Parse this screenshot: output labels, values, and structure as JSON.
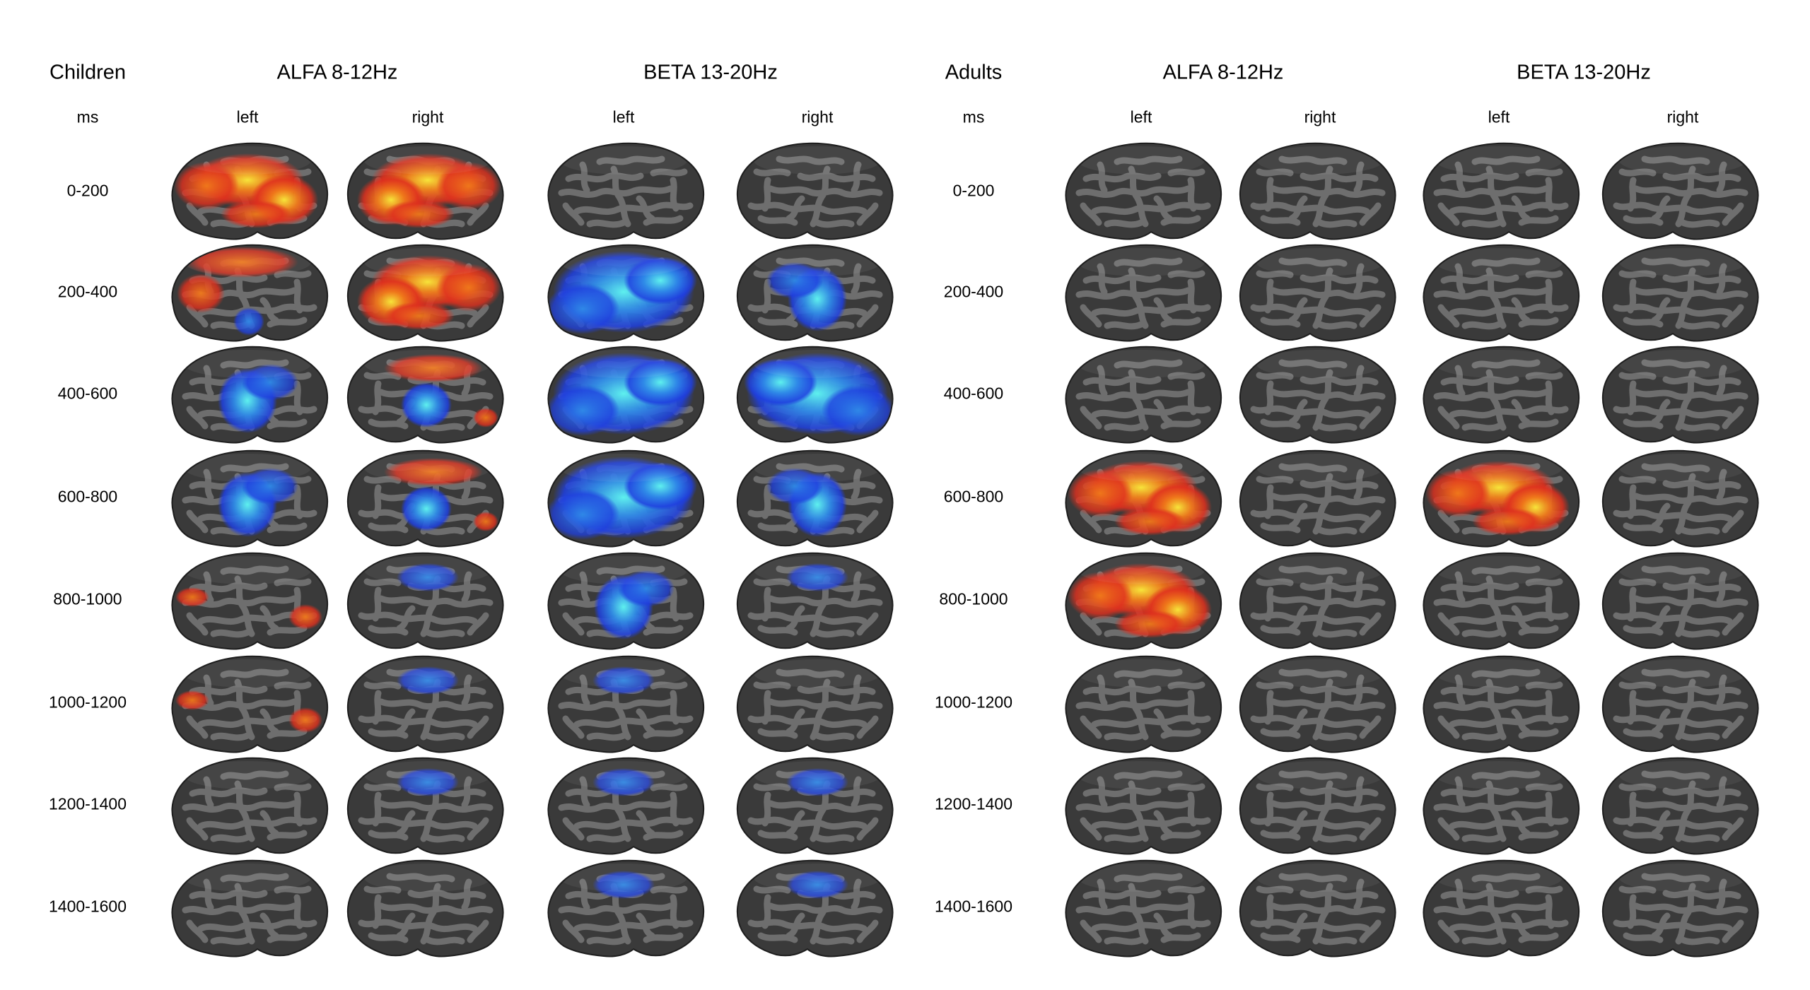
{
  "children": {
    "title": "Children",
    "ms_label": "ms",
    "alfa": {
      "title": "ALFA 8-12Hz",
      "left": "left",
      "right": "right"
    },
    "beta": {
      "title": "BETA 13-20Hz",
      "left": "left",
      "right": "right"
    }
  },
  "adults": {
    "title": "Adults",
    "ms_label": "ms",
    "alfa": {
      "title": "ALFA 8-12Hz",
      "left": "left",
      "right": "right"
    },
    "beta": {
      "title": "BETA 13-20Hz",
      "left": "left",
      "right": "right"
    }
  },
  "time_windows": [
    "0-200",
    "200-400",
    "400-600",
    "600-800",
    "800-1000",
    "1000-1200",
    "1200-1400",
    "1400-1600"
  ],
  "colors": {
    "cortex_dark": "#3a3a3a",
    "cortex_light": "#6e6e6e",
    "increase_red": "#e0301e",
    "increase_orange": "#f07a1a",
    "increase_yellow": "#f7e43a",
    "decrease_blue": "#1f3fe0",
    "decrease_mid": "#2f8ae8",
    "decrease_cyan": "#5ef0ee"
  },
  "activation_maps": {
    "children_alfa_left": [
      "increase-strong",
      "increase-mixed",
      "decrease-moderate",
      "decrease-moderate",
      "increase-weak",
      "increase-weak",
      "none",
      "none"
    ],
    "children_alfa_right": [
      "increase-strong",
      "increase-strong",
      "mixed",
      "mixed",
      "decrease-weak",
      "decrease-weak",
      "decrease-weak",
      "none"
    ],
    "children_beta_left": [
      "none",
      "decrease-strong",
      "decrease-strong",
      "decrease-strong",
      "decrease-moderate",
      "decrease-weak",
      "decrease-weak",
      "decrease-weak"
    ],
    "children_beta_right": [
      "none",
      "decrease-moderate",
      "decrease-strong",
      "decrease-moderate",
      "decrease-weak",
      "none",
      "decrease-weak",
      "decrease-weak"
    ],
    "adults_alfa_left": [
      "none",
      "none",
      "none",
      "increase-strong",
      "increase-strong",
      "none",
      "none",
      "none"
    ],
    "adults_alfa_right": [
      "none",
      "none",
      "none",
      "none",
      "none",
      "none",
      "none",
      "none"
    ],
    "adults_beta_left": [
      "none",
      "none",
      "none",
      "increase-strong",
      "none",
      "none",
      "none",
      "none"
    ],
    "adults_beta_right": [
      "none",
      "none",
      "none",
      "none",
      "none",
      "none",
      "none",
      "none"
    ]
  }
}
